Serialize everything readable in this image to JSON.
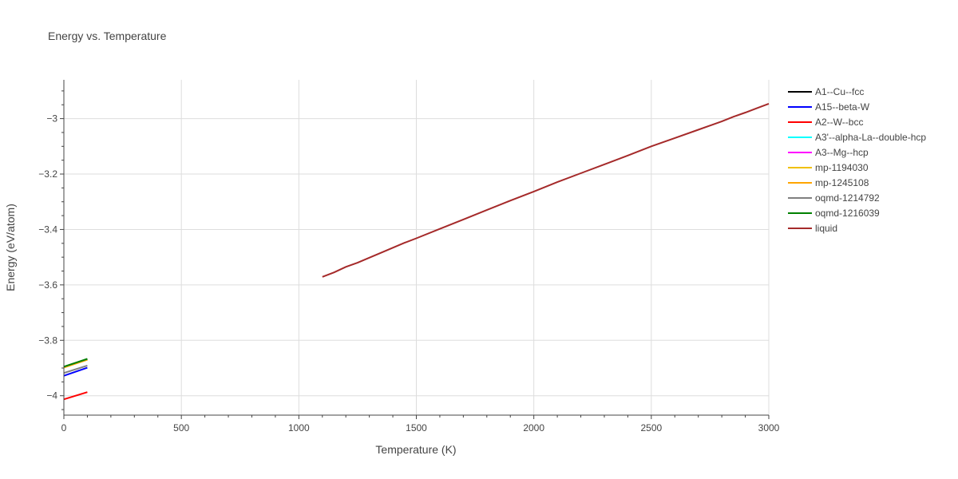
{
  "chart_data": {
    "type": "line",
    "title": "Energy vs. Temperature",
    "xlabel": "Temperature (K)",
    "ylabel": "Energy (eV/atom)",
    "xlim": [
      0,
      3000
    ],
    "ylim": [
      -4.07,
      -2.86
    ],
    "xticks": [
      0,
      500,
      1000,
      1500,
      2000,
      2500,
      3000
    ],
    "xtick_labels": [
      "0",
      "500",
      "1000",
      "1500",
      "2000",
      "2500",
      "3000"
    ],
    "yticks": [
      -4,
      -3.8,
      -3.6,
      -3.4,
      -3.2,
      -3
    ],
    "ytick_labels": [
      "−4",
      "−3.8",
      "−3.6",
      "−3.4",
      "−3.2",
      "−3"
    ],
    "grid": true,
    "legend_position": "right",
    "series": [
      {
        "name": "A1--Cu--fcc",
        "color": "#000000",
        "x": [
          0,
          100
        ],
        "y": [
          -3.896,
          -3.868
        ]
      },
      {
        "name": "A15--beta-W",
        "color": "#0000ff",
        "x": [
          0,
          100
        ],
        "y": [
          -3.928,
          -3.899
        ]
      },
      {
        "name": "A2--W--bcc",
        "color": "#ff0000",
        "x": [
          0,
          100
        ],
        "y": [
          -4.013,
          -3.987
        ]
      },
      {
        "name": "A3'--alpha-La--double-hcp",
        "color": "#00ffff",
        "x": [
          0,
          100
        ],
        "y": [
          -3.897,
          -3.869
        ]
      },
      {
        "name": "A3--Mg--hcp",
        "color": "#ff00ff",
        "x": [
          0,
          100
        ],
        "y": [
          -3.897,
          -3.869
        ]
      },
      {
        "name": "mp-1194030",
        "color": "#f0c000",
        "x": [
          0,
          100
        ],
        "y": [
          -3.898,
          -3.87
        ]
      },
      {
        "name": "mp-1245108",
        "color": "#ffa500",
        "x": [
          0,
          100
        ],
        "y": [
          -3.898,
          -3.87
        ]
      },
      {
        "name": "oqmd-1214792",
        "color": "#808080",
        "x": [
          0,
          100
        ],
        "y": [
          -3.918,
          -3.891
        ]
      },
      {
        "name": "oqmd-1216039",
        "color": "#008000",
        "x": [
          0,
          100
        ],
        "y": [
          -3.895,
          -3.867
        ]
      },
      {
        "name": "liquid",
        "color": "#a52a2a",
        "x": [
          1100,
          1150,
          1200,
          1250,
          1300,
          1350,
          1400,
          1450,
          1500,
          1600,
          1700,
          1800,
          1900,
          2000,
          2100,
          2200,
          2300,
          2400,
          2500,
          2600,
          2700,
          2800,
          2850,
          2900,
          2950,
          3000
        ],
        "y": [
          -3.571,
          -3.555,
          -3.535,
          -3.52,
          -3.502,
          -3.484,
          -3.466,
          -3.448,
          -3.432,
          -3.398,
          -3.364,
          -3.33,
          -3.296,
          -3.263,
          -3.229,
          -3.197,
          -3.165,
          -3.133,
          -3.1,
          -3.07,
          -3.04,
          -3.01,
          -2.993,
          -2.978,
          -2.962,
          -2.946
        ]
      }
    ]
  }
}
